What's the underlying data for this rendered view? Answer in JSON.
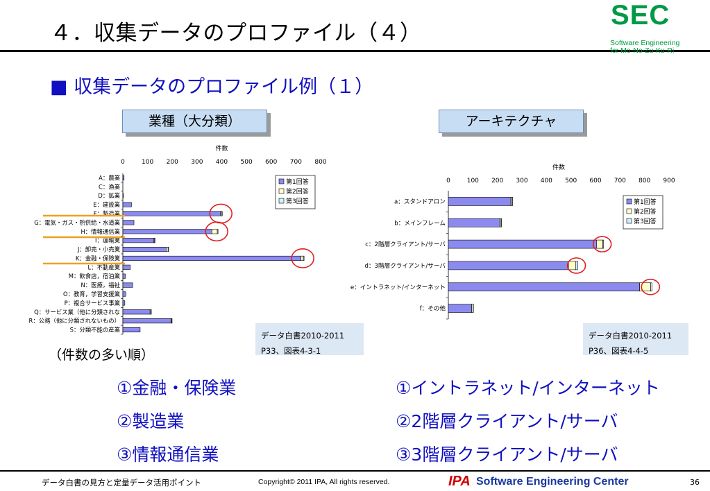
{
  "header": {
    "title": "４．収集データのプロファイル（４）",
    "logo": {
      "name": "SEC",
      "sub1": "Software Engineering",
      "sub2": "for Mo-No-Zu-Ku-Ri",
      "color": "#009a46"
    }
  },
  "subtitle": {
    "bullet": "■",
    "text": " 収集データのプロファイル例（１）"
  },
  "labels": {
    "industry": "業種（大分類）",
    "architecture": "アーキテクチャ"
  },
  "sources": {
    "left": {
      "line1": "データ白書2010-2011",
      "line2": "P33、図表4-3-1"
    },
    "right": {
      "line1": "データ白書2010-2011",
      "line2": "P36、図表4-4-5"
    }
  },
  "order_note": "（件数の多い順）",
  "rankings": {
    "industry": [
      "①金融・保険業",
      "②製造業",
      "③情報通信業"
    ],
    "architecture": [
      "①イントラネット/インターネット",
      "②2階層クライアント/サーバ",
      "③3階層クライアント/サーバ"
    ]
  },
  "footer": {
    "left": "データ白書の見方と定量データ活用ポイント",
    "copyright": "Copyright© 2011 IPA, All rights reserved.",
    "ipa": "IPA",
    "sec": "Software Engineering Center",
    "page": "36"
  },
  "colors": {
    "series1": "#8b8bef",
    "series2": "#ffffc8",
    "series3": "#ccf2ff",
    "highlight_circle": "#e02020",
    "accent_line": "#f0a020"
  },
  "chart_data": [
    {
      "type": "bar",
      "orientation": "horizontal",
      "stacked": true,
      "xlabel": "件数",
      "xlim": [
        0,
        800
      ],
      "xticks": [
        0,
        100,
        200,
        300,
        400,
        500,
        600,
        700,
        800
      ],
      "legend_position": "top-right",
      "categories": [
        "A：農業",
        "C：漁業",
        "D：鉱業",
        "E：建設業",
        "F：製造業",
        "G：電気・ガス・熱供給・水道業",
        "H：情報通信業",
        "I：運輸業",
        "J：卸売・小売業",
        "K：金融・保険業",
        "L：不動産業",
        "M：飲食店，宿泊業",
        "N：医療，福祉",
        "O：教育，学習支援業",
        "P：複合サービス事業",
        "Q：サービス業（他に分類されないもの）",
        "R：公務（他に分類されないもの）",
        "S：分類不能の産業"
      ],
      "categories_display": [
        "A：農業",
        "C：漁業",
        "D：鉱業",
        "E：建設業",
        "F：製造業",
        "G：電気・ガス・熱供給・水道業",
        "H：情報通信業",
        "I：運輸業",
        "J：卸売・小売業",
        "K：金融・保険業",
        "L：不動産業",
        "M：飲食店，宿泊業",
        "N：医療，福祉",
        "O：教育，学習支援業",
        "P：複合サービス事業",
        "Q：サービス業（他に分類されな",
        "R：公務（他に分類されないもの）",
        "S：分類不能の産業"
      ],
      "series": [
        {
          "name": "第1回答",
          "values": [
            5,
            0,
            2,
            35,
            395,
            45,
            360,
            125,
            175,
            720,
            30,
            10,
            40,
            12,
            8,
            110,
            195,
            70
          ]
        },
        {
          "name": "第2回答",
          "values": [
            0,
            0,
            0,
            0,
            5,
            0,
            22,
            3,
            8,
            10,
            0,
            0,
            0,
            0,
            0,
            3,
            2,
            0
          ]
        },
        {
          "name": "第3回答",
          "values": [
            0,
            0,
            0,
            0,
            2,
            0,
            3,
            1,
            2,
            3,
            0,
            0,
            0,
            0,
            0,
            1,
            1,
            0
          ]
        }
      ],
      "highlighted": [
        "F：製造業",
        "H：情報通信業",
        "K：金融・保険業"
      ]
    },
    {
      "type": "bar",
      "orientation": "horizontal",
      "stacked": true,
      "xlabel": "件数",
      "xlim": [
        0,
        900
      ],
      "xticks": [
        0,
        100,
        200,
        300,
        400,
        500,
        600,
        700,
        800,
        900
      ],
      "legend_position": "top-right",
      "categories": [
        "a：スタンドアロン",
        "b：メインフレーム",
        "c：2階層クライアント/サーバ",
        "d：3階層クライアント/サーバ",
        "e：イントラネット/インターネット",
        "f：その他"
      ],
      "series": [
        {
          "name": "第1回答",
          "values": [
            255,
            210,
            605,
            490,
            780,
            95
          ]
        },
        {
          "name": "第2回答",
          "values": [
            5,
            5,
            25,
            30,
            45,
            5
          ]
        },
        {
          "name": "第3回答",
          "values": [
            2,
            2,
            3,
            8,
            5,
            2
          ]
        }
      ],
      "highlighted": [
        "c：2階層クライアント/サーバ",
        "d：3階層クライアント/サーバ",
        "e：イントラネット/インターネット"
      ]
    }
  ]
}
